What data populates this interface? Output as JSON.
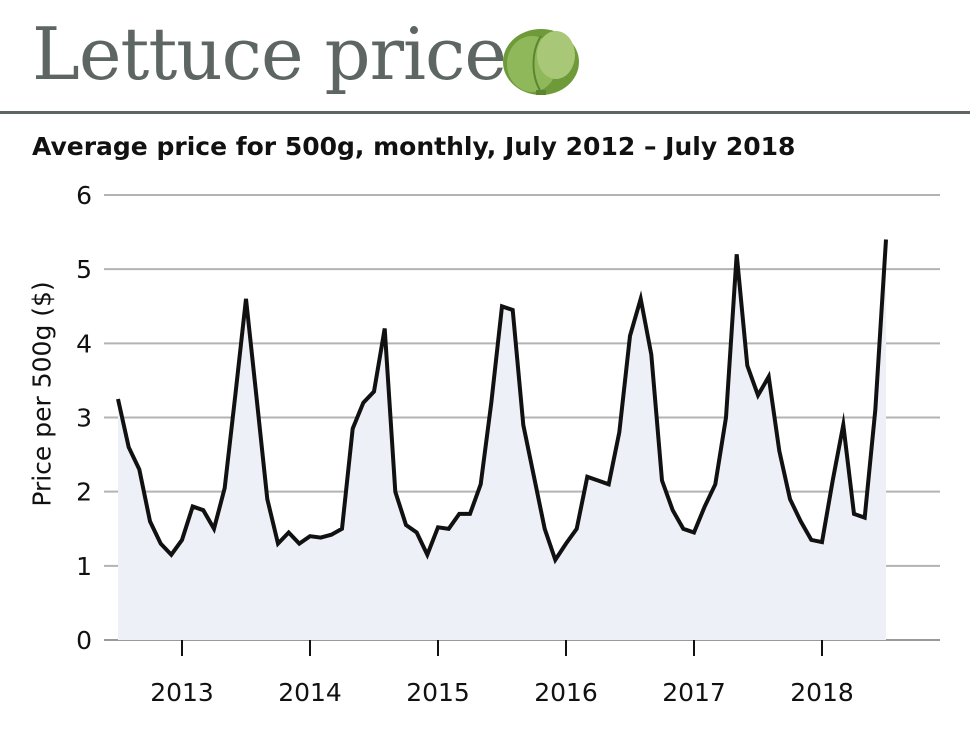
{
  "chart_data": {
    "type": "line",
    "title": "Lettuce price",
    "subtitle": "Average price for 500g, monthly, July 2012 – July 2018",
    "xlabel": "",
    "ylabel": "Price per 500g ($)",
    "ylim": [
      0,
      6
    ],
    "y_ticks": [
      "0",
      "1",
      "2",
      "3",
      "4",
      "5",
      "6"
    ],
    "x_ticks": [
      "2013",
      "2014",
      "2015",
      "2016",
      "2017",
      "2018"
    ],
    "grid": "horizontal",
    "area_fill": true,
    "line_color": "#111111",
    "fill_color": "#eef0f7",
    "grid_color": "#b3b3b3",
    "icon": "lettuce-icon",
    "series": [
      {
        "name": "",
        "start": "2012-07",
        "frequency": "monthly",
        "values": [
          3.25,
          2.6,
          2.3,
          1.6,
          1.3,
          1.15,
          1.35,
          1.8,
          1.75,
          1.5,
          2.05,
          3.3,
          4.6,
          3.25,
          1.9,
          1.3,
          1.45,
          1.3,
          1.4,
          1.38,
          1.42,
          1.5,
          2.85,
          3.2,
          3.35,
          4.2,
          2.0,
          1.55,
          1.45,
          1.15,
          1.52,
          1.5,
          1.7,
          1.7,
          2.1,
          3.2,
          4.5,
          4.45,
          2.9,
          2.2,
          1.5,
          1.08,
          1.3,
          1.5,
          2.2,
          2.15,
          2.1,
          2.8,
          4.1,
          4.6,
          3.85,
          2.15,
          1.75,
          1.5,
          1.45,
          1.8,
          2.1,
          3.0,
          5.2,
          3.7,
          3.3,
          3.55,
          2.55,
          1.9,
          1.6,
          1.35,
          1.32,
          2.15,
          2.9,
          1.7,
          1.65,
          3.1,
          5.4
        ]
      }
    ]
  }
}
